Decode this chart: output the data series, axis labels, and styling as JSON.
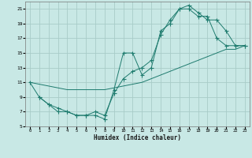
{
  "xlabel": "Humidex (Indice chaleur)",
  "xlim": [
    -0.5,
    23.5
  ],
  "ylim": [
    5,
    22
  ],
  "yticks": [
    5,
    7,
    9,
    11,
    13,
    15,
    17,
    19,
    21
  ],
  "xticks": [
    0,
    1,
    2,
    3,
    4,
    5,
    6,
    7,
    8,
    9,
    10,
    11,
    12,
    13,
    14,
    15,
    16,
    17,
    18,
    19,
    20,
    21,
    22,
    23
  ],
  "bg_color": "#c8e8e5",
  "line_color": "#1e7b6e",
  "grid_color": "#a8ccc8",
  "line1_x": [
    0,
    1,
    2,
    3,
    4,
    5,
    6,
    7,
    8,
    9,
    10,
    11,
    12,
    13,
    14,
    15,
    16,
    17,
    18,
    19,
    20,
    21,
    22,
    23
  ],
  "line1_y": [
    11,
    9,
    8,
    7,
    7,
    6.5,
    6.5,
    6.5,
    6,
    10,
    15,
    15,
    12,
    13,
    18,
    19,
    21,
    21,
    20,
    20,
    17,
    16,
    16,
    16
  ],
  "line2_x": [
    1,
    2,
    3,
    4,
    5,
    6,
    7,
    8,
    9,
    10,
    11,
    12,
    13,
    14,
    15,
    16,
    17,
    18,
    19,
    20,
    21,
    22,
    23
  ],
  "line2_y": [
    9,
    8,
    7.5,
    7,
    6.5,
    6.5,
    7,
    6.5,
    9.5,
    11.5,
    12.5,
    13,
    14,
    17.5,
    19.5,
    21,
    21.5,
    20.5,
    19.5,
    19.5,
    18,
    16,
    16
  ],
  "line3_x": [
    0,
    4,
    8,
    12,
    16,
    20,
    21,
    22,
    23
  ],
  "line3_y": [
    11,
    10,
    10,
    11,
    13,
    15,
    15.5,
    15.5,
    16
  ]
}
